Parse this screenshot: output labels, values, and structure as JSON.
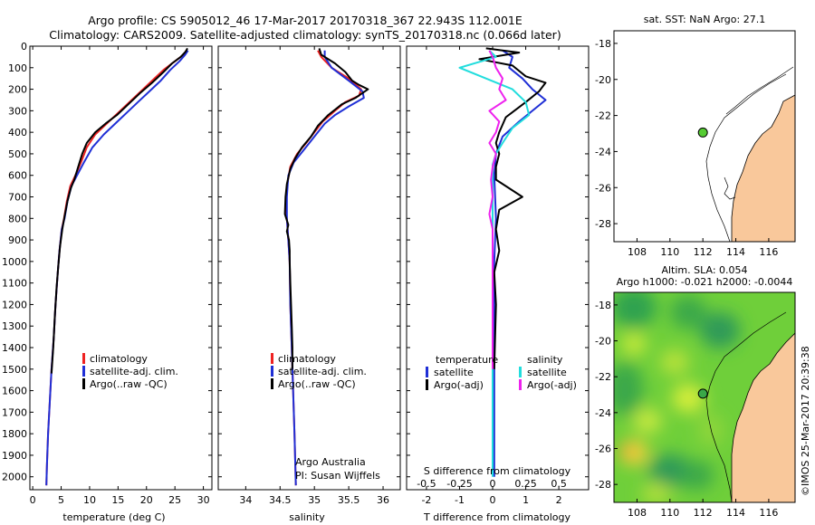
{
  "header": {
    "line1": "Argo profile: CS 5905012_46 17-Mar-2017 20170318_367 22.943S 112.001E",
    "line2": "Climatology: CARS2009. Satellite-adjusted climatology: synTS_20170318.nc (0.066d later)"
  },
  "colors": {
    "climatology": "#ee2222",
    "satellite": "#1f2fd6",
    "argo": "#000000",
    "satellite_salinity": "#22dddd",
    "argo_salinity_adj": "#ee22ee",
    "land": "#f9c89b",
    "marker": "#55cc33"
  },
  "chart_data": [
    {
      "id": "temperature",
      "type": "line",
      "xlabel": "temperature (deg C)",
      "xlim": [
        -0.5,
        31.5
      ],
      "xticks": [
        0,
        5,
        10,
        15,
        20,
        25,
        30
      ],
      "ylim": [
        2060,
        0
      ],
      "yticks": [
        0,
        100,
        200,
        300,
        400,
        500,
        600,
        700,
        800,
        900,
        1000,
        1100,
        1200,
        1300,
        1400,
        1500,
        1600,
        1700,
        1800,
        1900,
        2000
      ],
      "legend": [
        "climatology",
        "satellite-adj. clim.",
        "Argo(..raw -QC)"
      ],
      "series": [
        {
          "name": "climatology",
          "color_key": "climatology",
          "points": [
            [
              27.0,
              20
            ],
            [
              26.5,
              40
            ],
            [
              25,
              70
            ],
            [
              23,
              110
            ],
            [
              21,
              160
            ],
            [
              19,
              210
            ],
            [
              17,
              260
            ],
            [
              15,
              310
            ],
            [
              13,
              360
            ],
            [
              11,
              410
            ],
            [
              9.5,
              470
            ],
            [
              8.5,
              540
            ],
            [
              7.5,
              600
            ],
            [
              6.6,
              650
            ],
            [
              6.0,
              720
            ],
            [
              5.5,
              800
            ],
            [
              5.1,
              850
            ],
            [
              4.7,
              950
            ],
            [
              4.4,
              1050
            ],
            [
              4.0,
              1200
            ],
            [
              3.7,
              1350
            ],
            [
              3.3,
              1500
            ],
            [
              3.0,
              1650
            ],
            [
              2.7,
              1800
            ],
            [
              2.5,
              1950
            ],
            [
              2.4,
              2040
            ]
          ]
        },
        {
          "name": "satellite-adj. clim.",
          "color_key": "satellite",
          "points": [
            [
              27.3,
              20
            ],
            [
              26.8,
              40
            ],
            [
              25.8,
              70
            ],
            [
              24.2,
              110
            ],
            [
              22.5,
              160
            ],
            [
              20.5,
              210
            ],
            [
              18.5,
              260
            ],
            [
              16.5,
              310
            ],
            [
              14.5,
              360
            ],
            [
              12.5,
              410
            ],
            [
              10.5,
              470
            ],
            [
              9.0,
              540
            ],
            [
              7.8,
              600
            ],
            [
              6.8,
              650
            ],
            [
              6.1,
              720
            ],
            [
              5.6,
              800
            ],
            [
              5.1,
              850
            ],
            [
              4.7,
              950
            ],
            [
              4.4,
              1050
            ],
            [
              4.0,
              1200
            ],
            [
              3.7,
              1350
            ],
            [
              3.3,
              1500
            ],
            [
              3.0,
              1650
            ],
            [
              2.7,
              1800
            ],
            [
              2.5,
              1950
            ],
            [
              2.4,
              2040
            ]
          ]
        },
        {
          "name": "Argo(..raw -QC)",
          "color_key": "argo",
          "points": [
            [
              27.2,
              10
            ],
            [
              26.9,
              25
            ],
            [
              26.0,
              50
            ],
            [
              24.5,
              80
            ],
            [
              23.0,
              120
            ],
            [
              21.0,
              170
            ],
            [
              18.8,
              220
            ],
            [
              16.8,
              270
            ],
            [
              14.8,
              320
            ],
            [
              12.8,
              360
            ],
            [
              11.0,
              400
            ],
            [
              9.5,
              450
            ],
            [
              8.7,
              500
            ],
            [
              8.0,
              560
            ],
            [
              7.3,
              620
            ],
            [
              6.7,
              660
            ],
            [
              6.1,
              720
            ],
            [
              5.6,
              790
            ],
            [
              5.2,
              850
            ],
            [
              4.8,
              930
            ],
            [
              4.5,
              1020
            ],
            [
              4.2,
              1120
            ],
            [
              3.9,
              1250
            ],
            [
              3.6,
              1400
            ],
            [
              3.3,
              1520
            ]
          ]
        }
      ]
    },
    {
      "id": "salinity",
      "type": "line",
      "xlabel": "salinity",
      "xlim": [
        33.6,
        36.25
      ],
      "xticks": [
        34,
        34.5,
        35,
        35.5,
        36
      ],
      "ylim": [
        2060,
        0
      ],
      "legend": [
        "climatology",
        "satellite-adj. clim.",
        "Argo(..raw -QC)"
      ],
      "annotation": [
        "Argo Australia",
        "PI: Susan Wijffels"
      ],
      "series": [
        {
          "name": "climatology",
          "color_key": "climatology",
          "points": [
            [
              35.05,
              20
            ],
            [
              35.1,
              50
            ],
            [
              35.25,
              100
            ],
            [
              35.5,
              150
            ],
            [
              35.68,
              200
            ],
            [
              35.65,
              230
            ],
            [
              35.45,
              260
            ],
            [
              35.3,
              300
            ],
            [
              35.12,
              350
            ],
            [
              35.0,
              400
            ],
            [
              34.88,
              450
            ],
            [
              34.75,
              500
            ],
            [
              34.65,
              560
            ],
            [
              34.6,
              650
            ],
            [
              34.58,
              750
            ],
            [
              34.6,
              800
            ],
            [
              34.62,
              900
            ],
            [
              34.64,
              1000
            ],
            [
              34.65,
              1200
            ],
            [
              34.67,
              1400
            ],
            [
              34.69,
              1600
            ],
            [
              34.71,
              1800
            ],
            [
              34.73,
              2040
            ]
          ]
        },
        {
          "name": "satellite-adj. clim.",
          "color_key": "satellite",
          "points": [
            [
              35.15,
              20
            ],
            [
              35.15,
              50
            ],
            [
              35.25,
              100
            ],
            [
              35.5,
              160
            ],
            [
              35.7,
              210
            ],
            [
              35.72,
              240
            ],
            [
              35.5,
              280
            ],
            [
              35.3,
              320
            ],
            [
              35.15,
              360
            ],
            [
              35.0,
              420
            ],
            [
              34.85,
              480
            ],
            [
              34.7,
              540
            ],
            [
              34.62,
              600
            ],
            [
              34.6,
              700
            ],
            [
              34.6,
              800
            ],
            [
              34.62,
              900
            ],
            [
              34.64,
              1000
            ],
            [
              34.65,
              1200
            ],
            [
              34.67,
              1400
            ],
            [
              34.69,
              1600
            ],
            [
              34.71,
              1800
            ],
            [
              34.73,
              2040
            ]
          ]
        },
        {
          "name": "Argo(..raw -QC)",
          "color_key": "argo",
          "points": [
            [
              35.07,
              10
            ],
            [
              35.1,
              40
            ],
            [
              35.3,
              80
            ],
            [
              35.45,
              120
            ],
            [
              35.55,
              160
            ],
            [
              35.65,
              180
            ],
            [
              35.78,
              200
            ],
            [
              35.6,
              240
            ],
            [
              35.4,
              270
            ],
            [
              35.2,
              320
            ],
            [
              35.05,
              370
            ],
            [
              34.95,
              420
            ],
            [
              34.82,
              470
            ],
            [
              34.72,
              520
            ],
            [
              34.65,
              570
            ],
            [
              34.6,
              640
            ],
            [
              34.58,
              700
            ],
            [
              34.57,
              780
            ],
            [
              34.62,
              830
            ],
            [
              34.6,
              860
            ],
            [
              34.63,
              900
            ],
            [
              34.64,
              950
            ],
            [
              34.64,
              1000
            ],
            [
              34.65,
              1100
            ],
            [
              34.66,
              1200
            ],
            [
              34.67,
              1300
            ],
            [
              34.68,
              1400
            ],
            [
              34.68,
              1500
            ]
          ]
        }
      ]
    },
    {
      "id": "difference",
      "type": "line",
      "xlabel": "T difference from climatology",
      "xlabel_top": "S difference from climatology",
      "xlim": [
        -2.6,
        2.9
      ],
      "xticks": [
        -2,
        -1,
        0,
        1,
        2
      ],
      "top_ticks": [
        "-0.5",
        "-0.25",
        "0",
        "0.25",
        "0.5"
      ],
      "ylim": [
        2060,
        0
      ],
      "legend_left": {
        "title": "temperature",
        "entries": [
          "satellite",
          "Argo(-adj)"
        ]
      },
      "legend_right": {
        "title": "salinity",
        "entries": [
          "satellite",
          "Argo(-adj)"
        ]
      },
      "series": [
        {
          "name": "temperature satellite",
          "color_key": "satellite",
          "points": [
            [
              0.3,
              20
            ],
            [
              0.6,
              50
            ],
            [
              0.5,
              100
            ],
            [
              0.9,
              150
            ],
            [
              1.2,
              200
            ],
            [
              1.6,
              250
            ],
            [
              1.2,
              300
            ],
            [
              0.8,
              350
            ],
            [
              0.3,
              420
            ],
            [
              0.1,
              500
            ],
            [
              0.05,
              600
            ],
            [
              0.1,
              800
            ],
            [
              0.05,
              1000
            ],
            [
              0.05,
              1500
            ],
            [
              0.05,
              2000
            ]
          ]
        },
        {
          "name": "temperature Argo(-adj)",
          "color_key": "argo",
          "points": [
            [
              -0.2,
              10
            ],
            [
              0.8,
              30
            ],
            [
              -0.4,
              60
            ],
            [
              0.6,
              90
            ],
            [
              1.0,
              140
            ],
            [
              1.6,
              170
            ],
            [
              1.4,
              210
            ],
            [
              1.0,
              260
            ],
            [
              0.4,
              330
            ],
            [
              0.2,
              400
            ],
            [
              0.1,
              450
            ],
            [
              0.2,
              500
            ],
            [
              0.1,
              560
            ],
            [
              0.1,
              620
            ],
            [
              0.9,
              700
            ],
            [
              0.2,
              760
            ],
            [
              0.1,
              850
            ],
            [
              0.2,
              950
            ],
            [
              0.05,
              1050
            ],
            [
              0.1,
              1200
            ],
            [
              0.05,
              1500
            ]
          ]
        },
        {
          "name": "salinity satellite",
          "color_key": "satellite_salinity",
          "points": [
            [
              -0.1,
              20
            ],
            [
              0.1,
              50
            ],
            [
              -1.0,
              100
            ],
            [
              -0.2,
              150
            ],
            [
              0.6,
              200
            ],
            [
              1.0,
              260
            ],
            [
              1.1,
              320
            ],
            [
              0.6,
              380
            ],
            [
              0.3,
              450
            ],
            [
              0.1,
              500
            ],
            [
              0.0,
              550
            ],
            [
              0.0,
              700
            ],
            [
              0.0,
              900
            ],
            [
              0.0,
              1200
            ],
            [
              0.0,
              1600
            ],
            [
              0.0,
              2000
            ]
          ]
        },
        {
          "name": "salinity Argo(-adj)",
          "color_key": "argo_salinity_adj",
          "points": [
            [
              -0.1,
              20
            ],
            [
              0.0,
              50
            ],
            [
              0.1,
              100
            ],
            [
              0.3,
              150
            ],
            [
              0.2,
              200
            ],
            [
              0.4,
              250
            ],
            [
              -0.1,
              300
            ],
            [
              0.2,
              350
            ],
            [
              0.1,
              400
            ],
            [
              -0.1,
              450
            ],
            [
              0.1,
              500
            ],
            [
              0.0,
              560
            ],
            [
              -0.05,
              620
            ],
            [
              0.0,
              700
            ],
            [
              -0.1,
              780
            ],
            [
              0.0,
              850
            ],
            [
              0.0,
              950
            ],
            [
              0.0,
              1100
            ],
            [
              0.0,
              1300
            ],
            [
              0.0,
              1500
            ]
          ]
        }
      ]
    }
  ],
  "map_sst": {
    "title": "sat. SST: NaN Argo: 27.1",
    "xlim": [
      106.6,
      117.6
    ],
    "ylim": [
      -29,
      -17.3
    ],
    "xticks": [
      108,
      110,
      112,
      114,
      116
    ],
    "yticks": [
      -18,
      -20,
      -22,
      -24,
      -26,
      -28
    ],
    "argo_position": [
      112.001,
      -22.943
    ]
  },
  "map_sla": {
    "title_line1": "Altim. SLA: 0.054",
    "title_line2": "Argo h1000: -0.021 h2000: -0.0044",
    "xlim": [
      106.6,
      117.6
    ],
    "ylim": [
      -29,
      -17.3
    ],
    "xticks": [
      108,
      110,
      112,
      114,
      116
    ],
    "yticks": [
      -18,
      -20,
      -22,
      -24,
      -26,
      -28
    ],
    "argo_position": [
      112.001,
      -22.943
    ]
  },
  "credit": "©IMOS 25-Mar-2017 20:39:38"
}
